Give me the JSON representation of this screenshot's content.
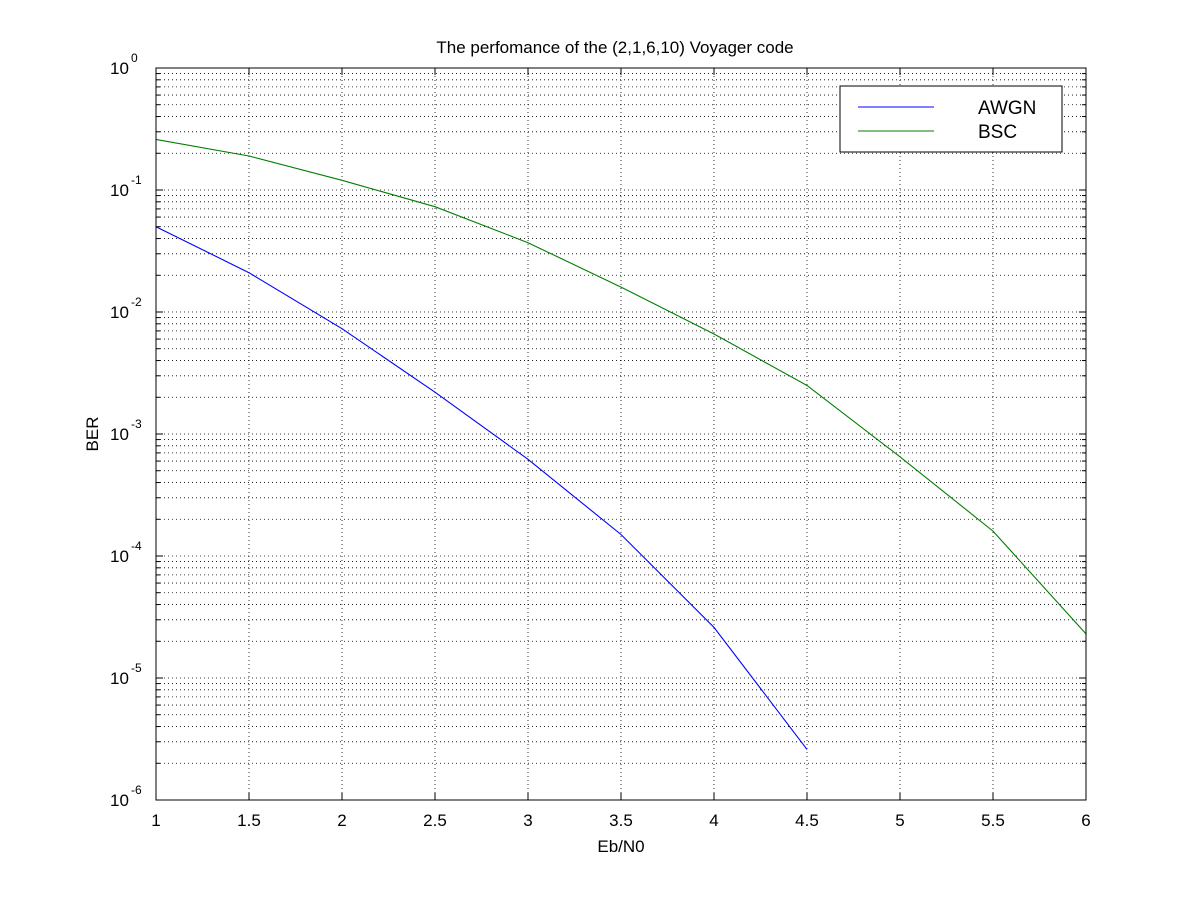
{
  "chart_data": {
    "type": "line",
    "title": "The perfomance of the (2,1,6,10) Voyager code",
    "xlabel": "Eb/N0",
    "ylabel": "BER",
    "xlim": [
      1,
      6
    ],
    "ylim": [
      1e-06,
      1
    ],
    "yscale": "log",
    "grid": true,
    "legend_position": "top-right",
    "x_ticks": [
      "1",
      "1.5",
      "2",
      "2.5",
      "3",
      "3.5",
      "4",
      "4.5",
      "5",
      "5.5",
      "6"
    ],
    "y_ticks": [
      {
        "base": "10",
        "exp": "-6"
      },
      {
        "base": "10",
        "exp": "-5"
      },
      {
        "base": "10",
        "exp": "-4"
      },
      {
        "base": "10",
        "exp": "-3"
      },
      {
        "base": "10",
        "exp": "-2"
      },
      {
        "base": "10",
        "exp": "-1"
      },
      {
        "base": "10",
        "exp": "0"
      }
    ],
    "series": [
      {
        "name": "AWGN",
        "color": "#0000ff",
        "x": [
          1,
          1.5,
          2,
          2.5,
          3,
          3.5,
          4,
          4.5
        ],
        "y": [
          0.05,
          0.021,
          0.0073,
          0.0022,
          0.00062,
          0.00015,
          2.6e-05,
          2.6e-06
        ]
      },
      {
        "name": "BSC",
        "color": "#007f00",
        "x": [
          1,
          1.5,
          2,
          2.5,
          3,
          3.5,
          4,
          4.5,
          5,
          5.5,
          6
        ],
        "y": [
          0.26,
          0.19,
          0.12,
          0.073,
          0.037,
          0.016,
          0.0066,
          0.0025,
          0.00065,
          0.00016,
          2.3e-05
        ]
      }
    ]
  }
}
